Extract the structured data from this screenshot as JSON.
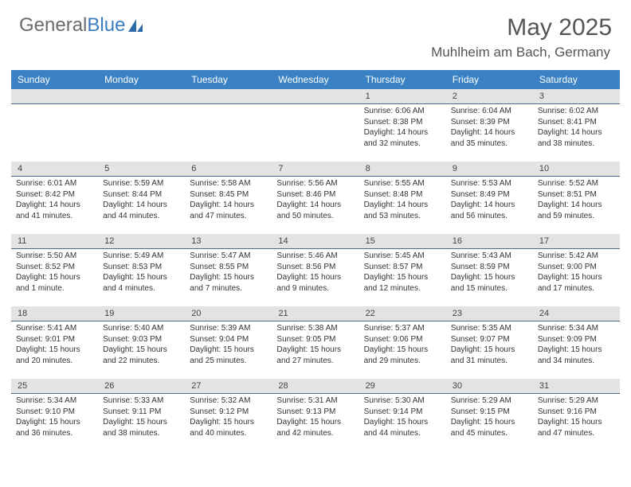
{
  "brand": {
    "part1": "General",
    "part2": "Blue"
  },
  "title": "May 2025",
  "location": "Muhlheim am Bach, Germany",
  "style": {
    "header_bg": "#3b82c4",
    "header_text": "#ffffff",
    "date_row_bg": "#e3e3e3",
    "date_row_border": "#4a6a8a",
    "body_text": "#333333",
    "title_color": "#555555",
    "brand_gray": "#6b6b6b",
    "brand_blue": "#3b7bbf"
  },
  "weekdays": [
    "Sunday",
    "Monday",
    "Tuesday",
    "Wednesday",
    "Thursday",
    "Friday",
    "Saturday"
  ],
  "weeks": [
    {
      "dates": [
        "",
        "",
        "",
        "",
        "1",
        "2",
        "3"
      ],
      "cells": [
        null,
        null,
        null,
        null,
        {
          "sunrise": "Sunrise: 6:06 AM",
          "sunset": "Sunset: 8:38 PM",
          "daylight": "Daylight: 14 hours and 32 minutes."
        },
        {
          "sunrise": "Sunrise: 6:04 AM",
          "sunset": "Sunset: 8:39 PM",
          "daylight": "Daylight: 14 hours and 35 minutes."
        },
        {
          "sunrise": "Sunrise: 6:02 AM",
          "sunset": "Sunset: 8:41 PM",
          "daylight": "Daylight: 14 hours and 38 minutes."
        }
      ]
    },
    {
      "dates": [
        "4",
        "5",
        "6",
        "7",
        "8",
        "9",
        "10"
      ],
      "cells": [
        {
          "sunrise": "Sunrise: 6:01 AM",
          "sunset": "Sunset: 8:42 PM",
          "daylight": "Daylight: 14 hours and 41 minutes."
        },
        {
          "sunrise": "Sunrise: 5:59 AM",
          "sunset": "Sunset: 8:44 PM",
          "daylight": "Daylight: 14 hours and 44 minutes."
        },
        {
          "sunrise": "Sunrise: 5:58 AM",
          "sunset": "Sunset: 8:45 PM",
          "daylight": "Daylight: 14 hours and 47 minutes."
        },
        {
          "sunrise": "Sunrise: 5:56 AM",
          "sunset": "Sunset: 8:46 PM",
          "daylight": "Daylight: 14 hours and 50 minutes."
        },
        {
          "sunrise": "Sunrise: 5:55 AM",
          "sunset": "Sunset: 8:48 PM",
          "daylight": "Daylight: 14 hours and 53 minutes."
        },
        {
          "sunrise": "Sunrise: 5:53 AM",
          "sunset": "Sunset: 8:49 PM",
          "daylight": "Daylight: 14 hours and 56 minutes."
        },
        {
          "sunrise": "Sunrise: 5:52 AM",
          "sunset": "Sunset: 8:51 PM",
          "daylight": "Daylight: 14 hours and 59 minutes."
        }
      ]
    },
    {
      "dates": [
        "11",
        "12",
        "13",
        "14",
        "15",
        "16",
        "17"
      ],
      "cells": [
        {
          "sunrise": "Sunrise: 5:50 AM",
          "sunset": "Sunset: 8:52 PM",
          "daylight": "Daylight: 15 hours and 1 minute."
        },
        {
          "sunrise": "Sunrise: 5:49 AM",
          "sunset": "Sunset: 8:53 PM",
          "daylight": "Daylight: 15 hours and 4 minutes."
        },
        {
          "sunrise": "Sunrise: 5:47 AM",
          "sunset": "Sunset: 8:55 PM",
          "daylight": "Daylight: 15 hours and 7 minutes."
        },
        {
          "sunrise": "Sunrise: 5:46 AM",
          "sunset": "Sunset: 8:56 PM",
          "daylight": "Daylight: 15 hours and 9 minutes."
        },
        {
          "sunrise": "Sunrise: 5:45 AM",
          "sunset": "Sunset: 8:57 PM",
          "daylight": "Daylight: 15 hours and 12 minutes."
        },
        {
          "sunrise": "Sunrise: 5:43 AM",
          "sunset": "Sunset: 8:59 PM",
          "daylight": "Daylight: 15 hours and 15 minutes."
        },
        {
          "sunrise": "Sunrise: 5:42 AM",
          "sunset": "Sunset: 9:00 PM",
          "daylight": "Daylight: 15 hours and 17 minutes."
        }
      ]
    },
    {
      "dates": [
        "18",
        "19",
        "20",
        "21",
        "22",
        "23",
        "24"
      ],
      "cells": [
        {
          "sunrise": "Sunrise: 5:41 AM",
          "sunset": "Sunset: 9:01 PM",
          "daylight": "Daylight: 15 hours and 20 minutes."
        },
        {
          "sunrise": "Sunrise: 5:40 AM",
          "sunset": "Sunset: 9:03 PM",
          "daylight": "Daylight: 15 hours and 22 minutes."
        },
        {
          "sunrise": "Sunrise: 5:39 AM",
          "sunset": "Sunset: 9:04 PM",
          "daylight": "Daylight: 15 hours and 25 minutes."
        },
        {
          "sunrise": "Sunrise: 5:38 AM",
          "sunset": "Sunset: 9:05 PM",
          "daylight": "Daylight: 15 hours and 27 minutes."
        },
        {
          "sunrise": "Sunrise: 5:37 AM",
          "sunset": "Sunset: 9:06 PM",
          "daylight": "Daylight: 15 hours and 29 minutes."
        },
        {
          "sunrise": "Sunrise: 5:35 AM",
          "sunset": "Sunset: 9:07 PM",
          "daylight": "Daylight: 15 hours and 31 minutes."
        },
        {
          "sunrise": "Sunrise: 5:34 AM",
          "sunset": "Sunset: 9:09 PM",
          "daylight": "Daylight: 15 hours and 34 minutes."
        }
      ]
    },
    {
      "dates": [
        "25",
        "26",
        "27",
        "28",
        "29",
        "30",
        "31"
      ],
      "cells": [
        {
          "sunrise": "Sunrise: 5:34 AM",
          "sunset": "Sunset: 9:10 PM",
          "daylight": "Daylight: 15 hours and 36 minutes."
        },
        {
          "sunrise": "Sunrise: 5:33 AM",
          "sunset": "Sunset: 9:11 PM",
          "daylight": "Daylight: 15 hours and 38 minutes."
        },
        {
          "sunrise": "Sunrise: 5:32 AM",
          "sunset": "Sunset: 9:12 PM",
          "daylight": "Daylight: 15 hours and 40 minutes."
        },
        {
          "sunrise": "Sunrise: 5:31 AM",
          "sunset": "Sunset: 9:13 PM",
          "daylight": "Daylight: 15 hours and 42 minutes."
        },
        {
          "sunrise": "Sunrise: 5:30 AM",
          "sunset": "Sunset: 9:14 PM",
          "daylight": "Daylight: 15 hours and 44 minutes."
        },
        {
          "sunrise": "Sunrise: 5:29 AM",
          "sunset": "Sunset: 9:15 PM",
          "daylight": "Daylight: 15 hours and 45 minutes."
        },
        {
          "sunrise": "Sunrise: 5:29 AM",
          "sunset": "Sunset: 9:16 PM",
          "daylight": "Daylight: 15 hours and 47 minutes."
        }
      ]
    }
  ]
}
